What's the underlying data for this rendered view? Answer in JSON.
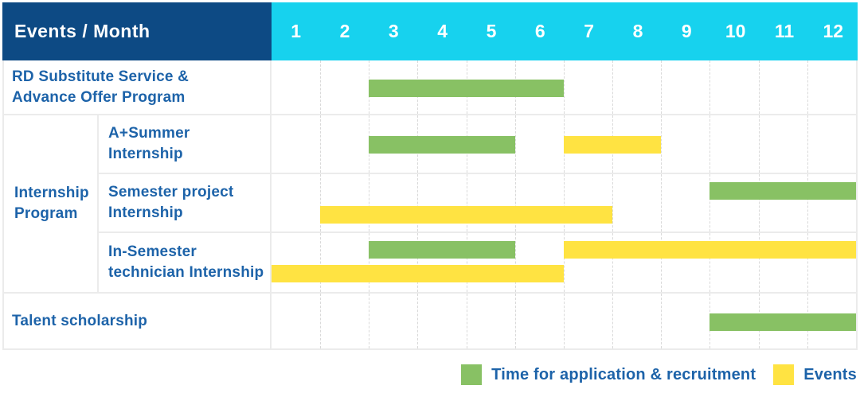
{
  "title_cell": "Events / Month",
  "colors": {
    "header_bg": "#0d4a84",
    "months_bg": "#17d2ee",
    "label_text": "#1d63a9",
    "green": "#88c164",
    "yellow": "#ffe342",
    "grid": "#ebebeb"
  },
  "chart_data": {
    "type": "bar",
    "subtype": "gantt",
    "title": "Events / Month",
    "x": {
      "label": "Month",
      "ticks": [
        "1",
        "2",
        "3",
        "4",
        "5",
        "6",
        "7",
        "8",
        "9",
        "10",
        "11",
        "12"
      ],
      "range": [
        1,
        12
      ]
    },
    "legend": [
      {
        "series": "green",
        "label": "Time for application & recruitment",
        "color": "#88c164"
      },
      {
        "series": "yellow",
        "label": "Events",
        "color": "#ffe342"
      }
    ],
    "rows": [
      {
        "group": "",
        "label": "RD Substitute Service & Advance Offer Program",
        "label_lines": [
          "RD Substitute Service &",
          "Advance Offer Program"
        ],
        "bars": [
          {
            "series": "green",
            "category": "Time for application & recruitment",
            "start_month": 3,
            "end_month": 6,
            "track": "center"
          }
        ]
      },
      {
        "group": "Internship Program",
        "group_lines": [
          "Internship",
          "Program"
        ],
        "label": "A+Summer Internship",
        "label_lines": [
          "A+Summer",
          "Internship"
        ],
        "bars": [
          {
            "series": "green",
            "category": "Time for application & recruitment",
            "start_month": 3,
            "end_month": 5,
            "track": "center"
          },
          {
            "series": "yellow",
            "category": "Events",
            "start_month": 7,
            "end_month": 8,
            "track": "center"
          }
        ]
      },
      {
        "group": "Internship Program",
        "label": "Semester project Internship",
        "label_lines": [
          "Semester project",
          "Internship"
        ],
        "bars": [
          {
            "series": "green",
            "category": "Time for application & recruitment",
            "start_month": 10,
            "end_month": 12,
            "track": "top"
          },
          {
            "series": "yellow",
            "category": "Events",
            "start_month": 2,
            "end_month": 7,
            "track": "bottom"
          }
        ]
      },
      {
        "group": "Internship Program",
        "label": "In-Semester technician Internship",
        "label_lines": [
          "In-Semester",
          "technician Internship"
        ],
        "bars": [
          {
            "series": "green",
            "category": "Time for application & recruitment",
            "start_month": 3,
            "end_month": 5,
            "track": "top"
          },
          {
            "series": "yellow",
            "category": "Events",
            "start_month": 7,
            "end_month": 12,
            "track": "top"
          },
          {
            "series": "yellow",
            "category": "Events",
            "start_month": 1,
            "end_month": 6,
            "track": "bottom"
          }
        ]
      },
      {
        "group": "",
        "label": "Talent scholarship",
        "label_lines": [
          "Talent scholarship"
        ],
        "bars": [
          {
            "series": "green",
            "category": "Time for application & recruitment",
            "start_month": 10,
            "end_month": 12,
            "track": "center"
          }
        ]
      }
    ]
  }
}
